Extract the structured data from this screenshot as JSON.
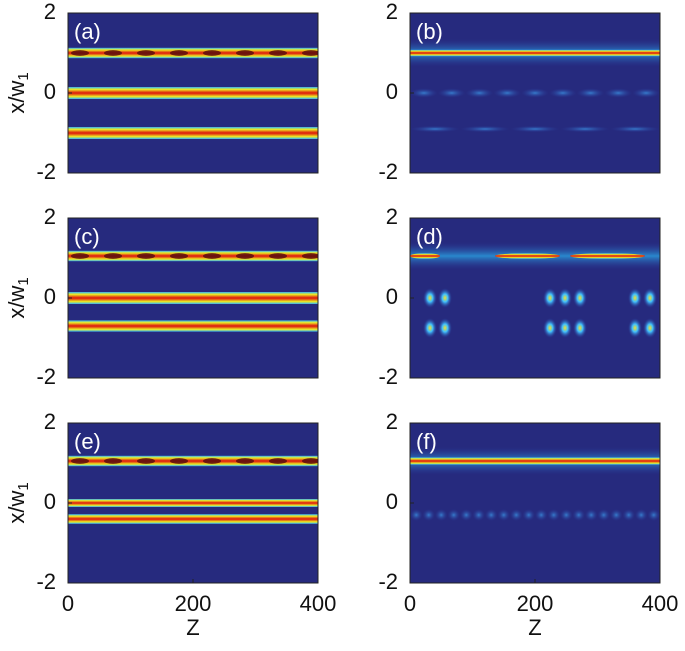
{
  "chart_data": [
    {
      "type": "heatmap",
      "panel_label": "(a)",
      "xlim": [
        0,
        400
      ],
      "ylim": [
        -2,
        2
      ],
      "yticks": [
        -2,
        0,
        2
      ],
      "ylabel": "x/w",
      "ylabel_sub": "1"
    },
    {
      "type": "heatmap",
      "panel_label": "(b)",
      "xlim": [
        0,
        400
      ],
      "ylim": [
        -2,
        2
      ],
      "yticks": [
        -2,
        0,
        2
      ]
    },
    {
      "type": "heatmap",
      "panel_label": "(c)",
      "xlim": [
        0,
        400
      ],
      "ylim": [
        -2,
        2
      ],
      "yticks": [
        -2,
        0,
        2
      ],
      "ylabel": "x/w",
      "ylabel_sub": "1"
    },
    {
      "type": "heatmap",
      "panel_label": "(d)",
      "xlim": [
        0,
        400
      ],
      "ylim": [
        -2,
        2
      ],
      "yticks": [
        -2,
        0,
        2
      ]
    },
    {
      "type": "heatmap",
      "panel_label": "(e)",
      "xlim": [
        0,
        400
      ],
      "ylim": [
        -2,
        2
      ],
      "yticks": [
        -2,
        0,
        2
      ],
      "xticks": [
        0,
        200,
        400
      ],
      "xlabel": "Z",
      "ylabel": "x/w",
      "ylabel_sub": "1"
    },
    {
      "type": "heatmap",
      "panel_label": "(f)",
      "xlim": [
        0,
        400
      ],
      "ylim": [
        -2,
        2
      ],
      "yticks": [
        -2,
        0,
        2
      ],
      "xticks": [
        0,
        200,
        400
      ],
      "xlabel": "Z"
    }
  ]
}
